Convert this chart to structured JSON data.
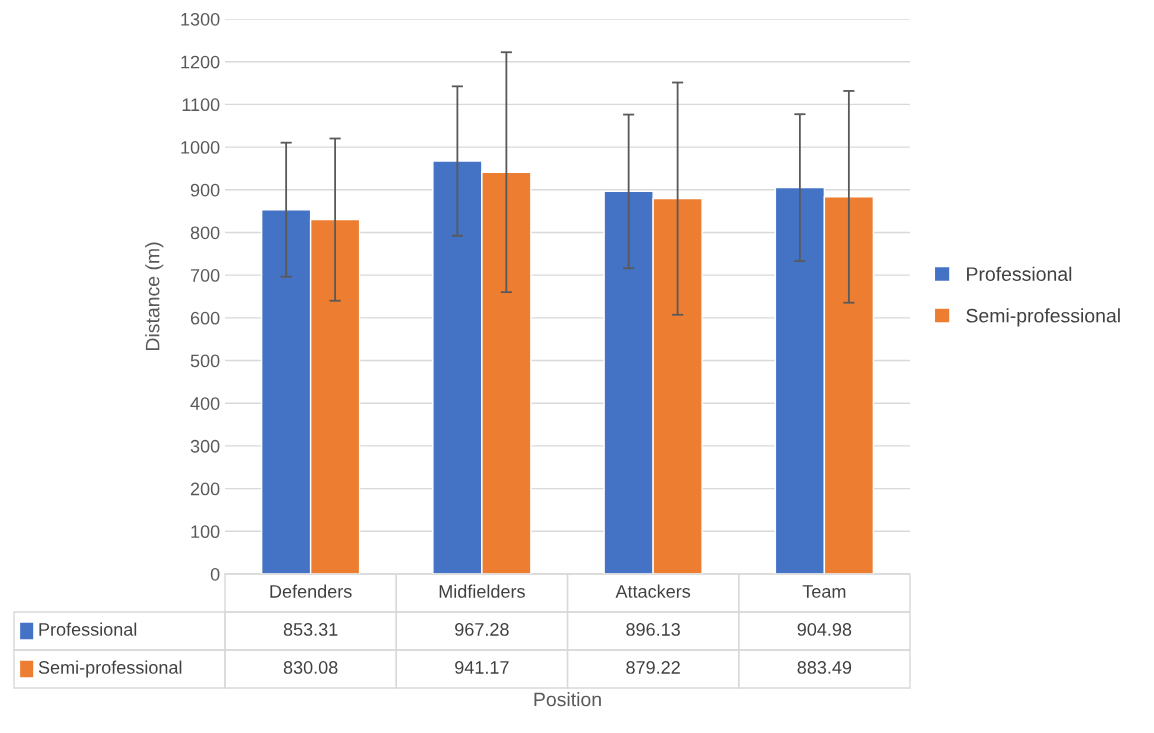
{
  "chart_data": {
    "type": "bar",
    "xlabel": "Position",
    "ylabel": "Distance (m)",
    "categories": [
      "Defenders",
      "Midfielders",
      "Attackers",
      "Team"
    ],
    "series": [
      {
        "name": "Professional",
        "color": "#4472c4",
        "values": [
          853.31,
          967.28,
          896.13,
          904.98
        ],
        "errors": [
          157,
          175,
          180,
          172
        ]
      },
      {
        "name": "Semi-professional",
        "color": "#ed7d31",
        "values": [
          830.08,
          941.17,
          879.22,
          883.49
        ],
        "errors": [
          190,
          281,
          272,
          248
        ]
      }
    ],
    "ylim": [
      0,
      1300
    ],
    "yticks": [
      0,
      100,
      200,
      300,
      400,
      500,
      600,
      700,
      800,
      900,
      1000,
      1100,
      1200,
      1300
    ],
    "grid": "y",
    "legend": "right",
    "data_labels": true
  }
}
